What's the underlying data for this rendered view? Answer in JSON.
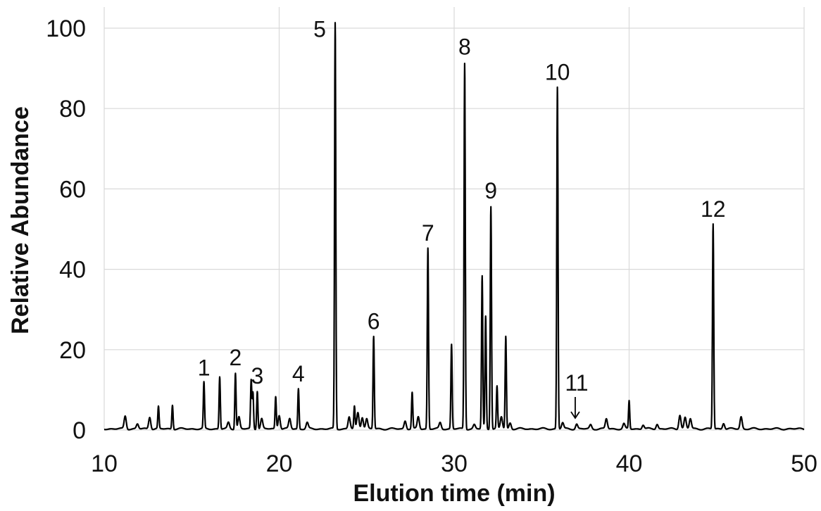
{
  "chart_data": {
    "type": "line",
    "xlabel": "Elution time (min)",
    "ylabel": "Relative Abundance",
    "xlim": [
      10,
      50
    ],
    "ylim": [
      0,
      100
    ],
    "xticks": [
      10,
      20,
      30,
      40,
      50
    ],
    "yticks": [
      0,
      20,
      40,
      60,
      80,
      100
    ],
    "grid": true,
    "peaks": [
      {
        "x": 11.2,
        "y": 3.2
      },
      {
        "x": 11.9,
        "y": 1.2
      },
      {
        "x": 12.6,
        "y": 3.0
      },
      {
        "x": 13.1,
        "y": 5.5
      },
      {
        "x": 13.9,
        "y": 6.0
      },
      {
        "x": 15.7,
        "y": 11.5
      },
      {
        "x": 16.6,
        "y": 13.0
      },
      {
        "x": 17.1,
        "y": 1.5
      },
      {
        "x": 17.5,
        "y": 14.0
      },
      {
        "x": 17.7,
        "y": 3.0
      },
      {
        "x": 18.4,
        "y": 12.0
      },
      {
        "x": 18.5,
        "y": 9.0
      },
      {
        "x": 18.75,
        "y": 9.5
      },
      {
        "x": 19.0,
        "y": 2.5
      },
      {
        "x": 19.8,
        "y": 8.0
      },
      {
        "x": 20.0,
        "y": 3.5
      },
      {
        "x": 20.6,
        "y": 2.5
      },
      {
        "x": 21.1,
        "y": 10.0
      },
      {
        "x": 21.6,
        "y": 1.5
      },
      {
        "x": 23.2,
        "y": 101.0
      },
      {
        "x": 24.0,
        "y": 3.0
      },
      {
        "x": 24.3,
        "y": 5.5
      },
      {
        "x": 24.5,
        "y": 4.0
      },
      {
        "x": 24.75,
        "y": 3.0
      },
      {
        "x": 25.0,
        "y": 2.5
      },
      {
        "x": 25.4,
        "y": 23.0
      },
      {
        "x": 27.2,
        "y": 2.0
      },
      {
        "x": 27.6,
        "y": 9.0
      },
      {
        "x": 27.95,
        "y": 3.0
      },
      {
        "x": 28.5,
        "y": 45.0
      },
      {
        "x": 29.2,
        "y": 1.5
      },
      {
        "x": 29.85,
        "y": 21.0
      },
      {
        "x": 30.6,
        "y": 91.0
      },
      {
        "x": 31.15,
        "y": 1.0
      },
      {
        "x": 31.6,
        "y": 38.0
      },
      {
        "x": 31.8,
        "y": 28.0
      },
      {
        "x": 32.1,
        "y": 55.5
      },
      {
        "x": 32.45,
        "y": 10.5
      },
      {
        "x": 32.7,
        "y": 3.0
      },
      {
        "x": 32.95,
        "y": 23.0
      },
      {
        "x": 33.2,
        "y": 1.5
      },
      {
        "x": 35.9,
        "y": 85.0
      },
      {
        "x": 36.2,
        "y": 1.5
      },
      {
        "x": 37.0,
        "y": 1.2
      },
      {
        "x": 37.8,
        "y": 1.0
      },
      {
        "x": 38.7,
        "y": 2.5
      },
      {
        "x": 39.7,
        "y": 1.2
      },
      {
        "x": 40.0,
        "y": 7.0
      },
      {
        "x": 40.8,
        "y": 1.0
      },
      {
        "x": 41.6,
        "y": 1.2
      },
      {
        "x": 42.9,
        "y": 3.5
      },
      {
        "x": 43.2,
        "y": 2.8
      },
      {
        "x": 43.5,
        "y": 2.5
      },
      {
        "x": 44.8,
        "y": 51.0
      },
      {
        "x": 45.4,
        "y": 1.5
      },
      {
        "x": 46.4,
        "y": 3.0
      }
    ],
    "annotations": [
      {
        "label": "1",
        "x": 15.7,
        "y": 11.5
      },
      {
        "label": "2",
        "x": 17.5,
        "y": 14.0
      },
      {
        "label": "3",
        "x": 18.75,
        "y": 9.5
      },
      {
        "label": "4",
        "x": 21.1,
        "y": 10.0
      },
      {
        "label": "5",
        "x": 23.2,
        "y": 101.0
      },
      {
        "label": "6",
        "x": 25.4,
        "y": 23.0
      },
      {
        "label": "7",
        "x": 28.5,
        "y": 45.0
      },
      {
        "label": "8",
        "x": 30.6,
        "y": 91.0
      },
      {
        "label": "9",
        "x": 32.1,
        "y": 55.5
      },
      {
        "label": "10",
        "x": 35.9,
        "y": 85.0
      },
      {
        "label": "11",
        "x": 37.0,
        "y": 1.2,
        "arrow": true
      },
      {
        "label": "12",
        "x": 44.8,
        "y": 51.0
      }
    ]
  }
}
